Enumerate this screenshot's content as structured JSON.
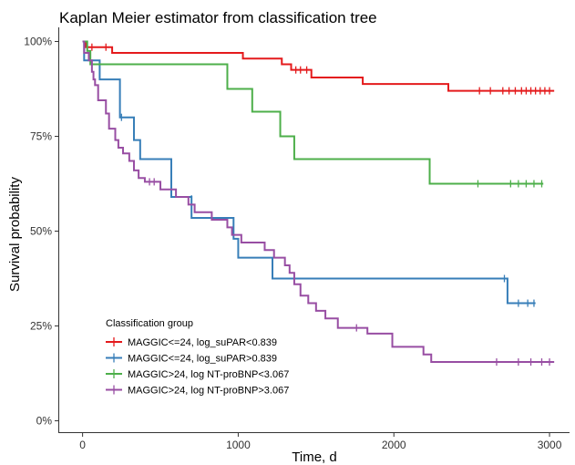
{
  "chart_data": {
    "type": "line",
    "step": true,
    "title": "Kaplan Meier estimator from classification tree",
    "xlabel": "Time, d",
    "ylabel": "Survival probability",
    "xlim": [
      -150,
      3070
    ],
    "ylim": [
      -0.03,
      1.03
    ],
    "xticks": [
      {
        "value": 0,
        "label": "0"
      },
      {
        "value": 1000,
        "label": "1000"
      },
      {
        "value": 2000,
        "label": "2000"
      },
      {
        "value": 3000,
        "label": "3000"
      }
    ],
    "yticks": [
      {
        "value": 0,
        "label": "0%"
      },
      {
        "value": 0.25,
        "label": "25%"
      },
      {
        "value": 0.5,
        "label": "50%"
      },
      {
        "value": 0.75,
        "label": "75%"
      },
      {
        "value": 1,
        "label": "100%"
      }
    ],
    "grid": false,
    "legend_title": "Classification group",
    "legend_position": "bottom-left-inside",
    "series": [
      {
        "name": "MAGGIC<=24, log_suPAR<0.839",
        "color": "#e41a1c",
        "steps": [
          [
            0,
            1.0
          ],
          [
            20,
            0.985
          ],
          [
            190,
            0.97
          ],
          [
            1030,
            0.955
          ],
          [
            1280,
            0.94
          ],
          [
            1340,
            0.925
          ],
          [
            1470,
            0.905
          ],
          [
            1800,
            0.888
          ],
          [
            2350,
            0.87
          ],
          [
            3030,
            0.87
          ]
        ],
        "censor": [
          [
            60,
            0.985
          ],
          [
            150,
            0.985
          ],
          [
            1370,
            0.925
          ],
          [
            1400,
            0.925
          ],
          [
            1440,
            0.925
          ],
          [
            2550,
            0.87
          ],
          [
            2620,
            0.87
          ],
          [
            2700,
            0.87
          ],
          [
            2740,
            0.87
          ],
          [
            2780,
            0.87
          ],
          [
            2820,
            0.87
          ],
          [
            2850,
            0.87
          ],
          [
            2880,
            0.87
          ],
          [
            2910,
            0.87
          ],
          [
            2940,
            0.87
          ],
          [
            2970,
            0.87
          ],
          [
            3000,
            0.87
          ]
        ]
      },
      {
        "name": "MAGGIC<=24, log_suPAR>0.839",
        "color": "#377eb8",
        "steps": [
          [
            0,
            1.0
          ],
          [
            10,
            0.95
          ],
          [
            110,
            0.9
          ],
          [
            240,
            0.8
          ],
          [
            330,
            0.74
          ],
          [
            370,
            0.69
          ],
          [
            570,
            0.59
          ],
          [
            700,
            0.535
          ],
          [
            970,
            0.48
          ],
          [
            1000,
            0.43
          ],
          [
            1220,
            0.375
          ],
          [
            2730,
            0.31
          ],
          [
            2910,
            0.31
          ]
        ],
        "censor": [
          [
            250,
            0.8
          ],
          [
            700,
            0.585
          ],
          [
            2710,
            0.375
          ],
          [
            2800,
            0.31
          ],
          [
            2860,
            0.31
          ],
          [
            2900,
            0.31
          ]
        ]
      },
      {
        "name": "MAGGIC>24, log NT-proBNP<3.067",
        "color": "#4daf4a",
        "steps": [
          [
            0,
            1.0
          ],
          [
            30,
            0.975
          ],
          [
            50,
            0.94
          ],
          [
            930,
            0.875
          ],
          [
            1090,
            0.815
          ],
          [
            1270,
            0.75
          ],
          [
            1360,
            0.69
          ],
          [
            2230,
            0.625
          ],
          [
            2960,
            0.625
          ]
        ],
        "censor": [
          [
            2540,
            0.625
          ],
          [
            2750,
            0.625
          ],
          [
            2800,
            0.625
          ],
          [
            2850,
            0.625
          ],
          [
            2900,
            0.625
          ],
          [
            2950,
            0.625
          ]
        ]
      },
      {
        "name": "MAGGIC>24, log NT-proBNP>3.067",
        "color": "#984ea3",
        "steps": [
          [
            0,
            1.0
          ],
          [
            10,
            0.97
          ],
          [
            40,
            0.95
          ],
          [
            60,
            0.92
          ],
          [
            70,
            0.9
          ],
          [
            80,
            0.885
          ],
          [
            100,
            0.845
          ],
          [
            150,
            0.81
          ],
          [
            170,
            0.77
          ],
          [
            210,
            0.74
          ],
          [
            230,
            0.72
          ],
          [
            260,
            0.705
          ],
          [
            300,
            0.685
          ],
          [
            330,
            0.66
          ],
          [
            360,
            0.64
          ],
          [
            400,
            0.63
          ],
          [
            500,
            0.61
          ],
          [
            600,
            0.59
          ],
          [
            680,
            0.57
          ],
          [
            720,
            0.55
          ],
          [
            830,
            0.53
          ],
          [
            930,
            0.51
          ],
          [
            960,
            0.49
          ],
          [
            1020,
            0.47
          ],
          [
            1170,
            0.45
          ],
          [
            1180,
            0.45
          ],
          [
            1230,
            0.43
          ],
          [
            1300,
            0.41
          ],
          [
            1330,
            0.39
          ],
          [
            1360,
            0.36
          ],
          [
            1400,
            0.33
          ],
          [
            1450,
            0.31
          ],
          [
            1500,
            0.29
          ],
          [
            1560,
            0.27
          ],
          [
            1640,
            0.245
          ],
          [
            1830,
            0.23
          ],
          [
            1990,
            0.195
          ],
          [
            2190,
            0.175
          ],
          [
            2240,
            0.155
          ],
          [
            2600,
            0.155
          ],
          [
            2610,
            0.155
          ],
          [
            3030,
            0.155
          ]
        ],
        "censor": [
          [
            430,
            0.63
          ],
          [
            460,
            0.63
          ],
          [
            1760,
            0.245
          ],
          [
            2660,
            0.155
          ],
          [
            2800,
            0.155
          ],
          [
            2880,
            0.155
          ],
          [
            2950,
            0.155
          ],
          [
            3000,
            0.155
          ]
        ]
      }
    ]
  }
}
